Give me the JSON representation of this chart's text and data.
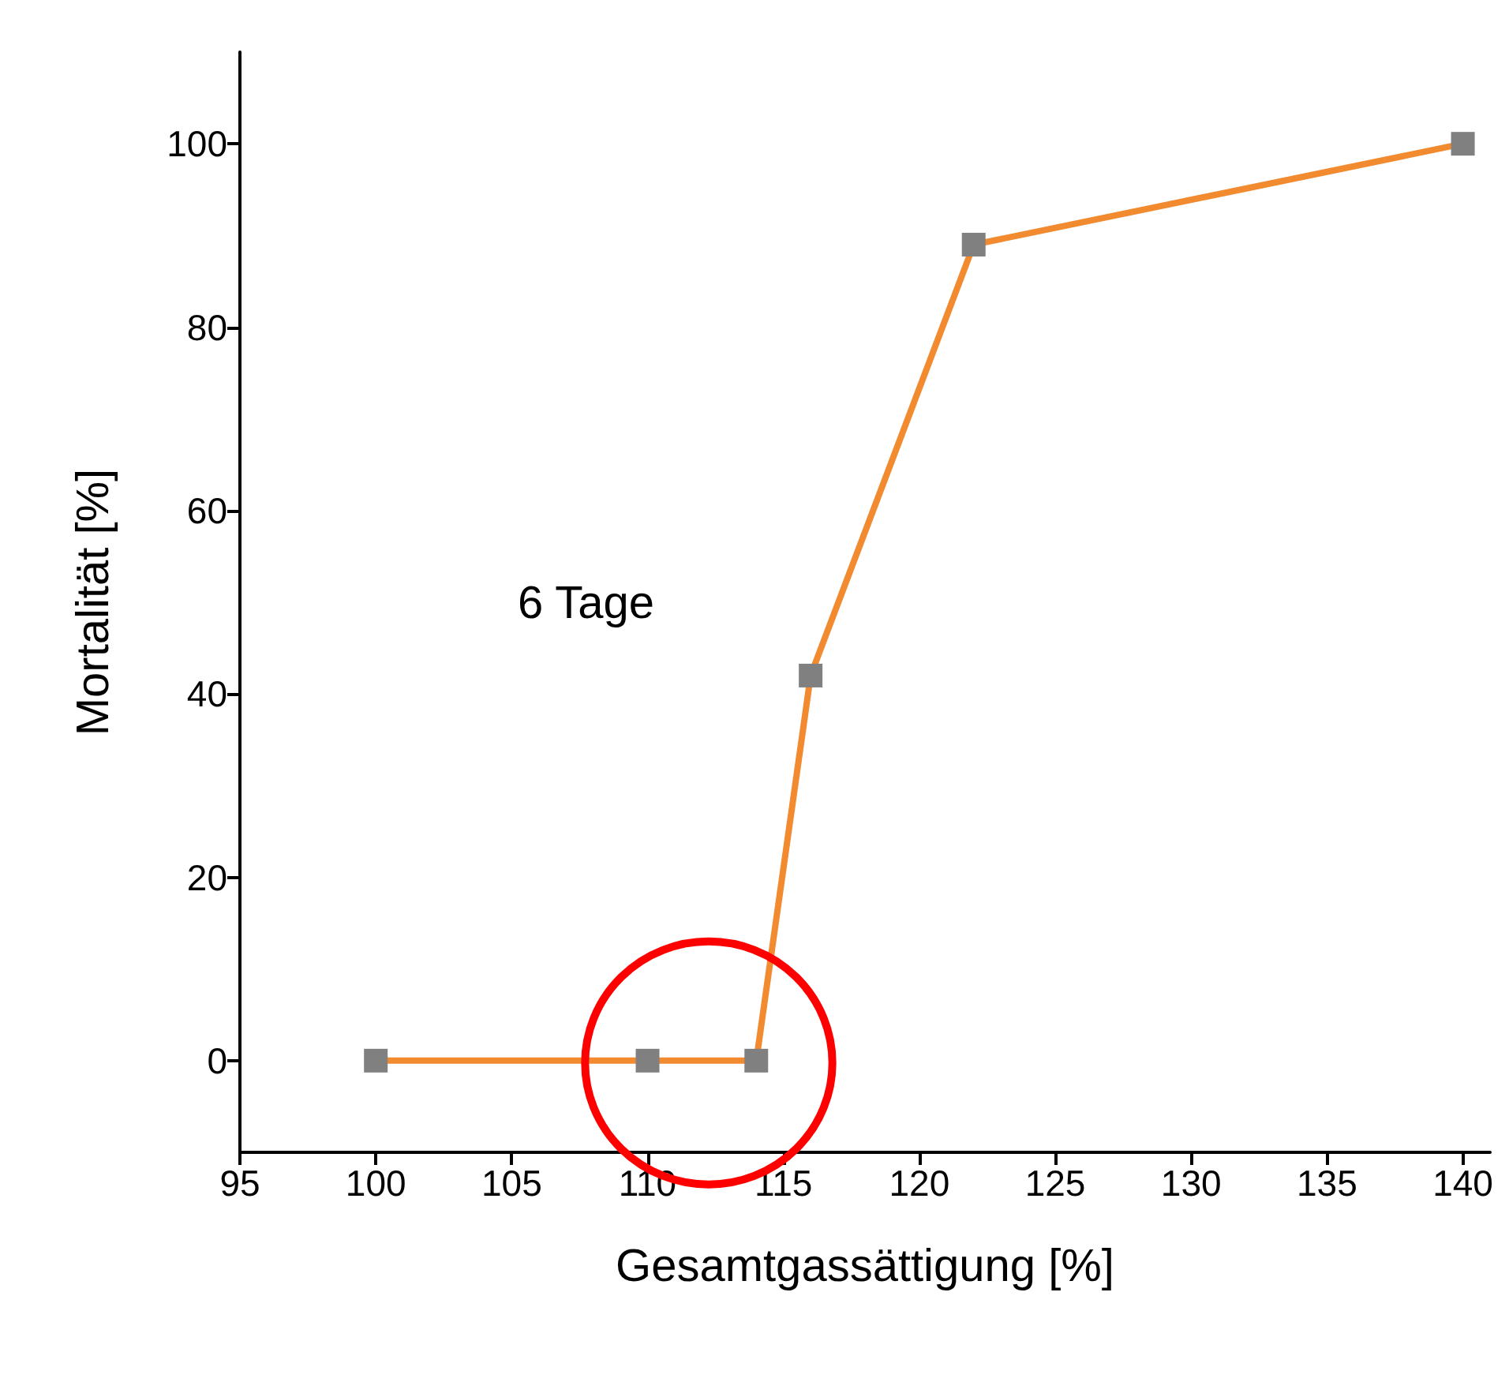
{
  "chart_data": {
    "type": "line",
    "xlabel": "Gesamtgassättigung [%]",
    "ylabel": "Mortalität [%]",
    "annotations": [
      "6 Tage"
    ],
    "x": [
      100,
      110,
      114,
      116,
      122,
      140
    ],
    "series": [
      {
        "color": "#f28a30",
        "values": [
          0,
          0,
          0,
          42,
          89,
          100
        ]
      }
    ],
    "marker": "square",
    "line_style": "solid",
    "grid": false,
    "xlim": [
      95,
      141
    ],
    "xticks": [
      95,
      100,
      105,
      110,
      115,
      120,
      125,
      130,
      135,
      140
    ],
    "ylim": [
      -10,
      110
    ],
    "yticks": [
      0,
      20,
      40,
      60,
      80,
      100
    ]
  }
}
